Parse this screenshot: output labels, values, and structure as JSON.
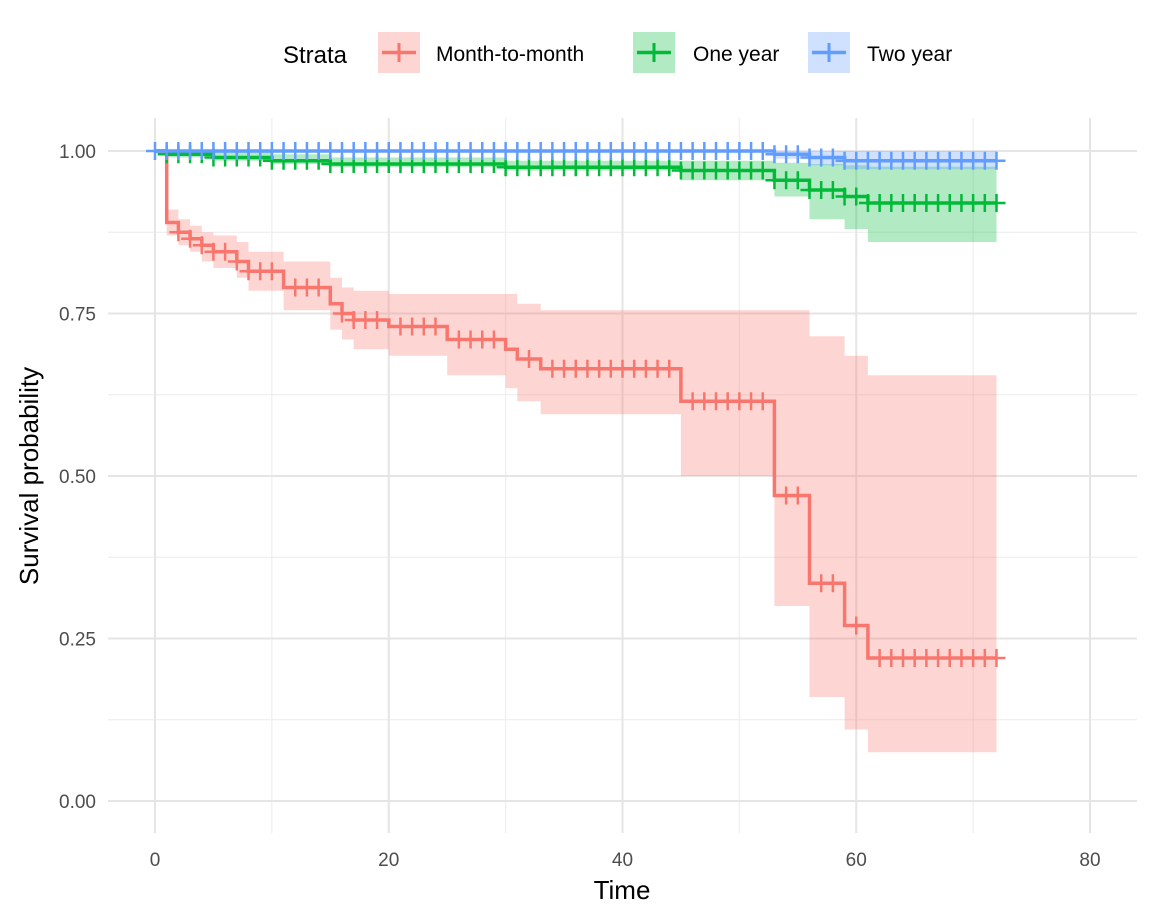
{
  "chart_data": {
    "type": "line",
    "subtype": "kaplan-meier step",
    "xlabel": "Time",
    "ylabel": "Survival probability",
    "xlim": [
      -2,
      84
    ],
    "ylim": [
      -0.04,
      1.05
    ],
    "x_ticks": [
      0,
      20,
      40,
      60,
      80
    ],
    "x_tick_labels": [
      "0",
      "20",
      "40",
      "60",
      "80"
    ],
    "y_ticks": [
      0.0,
      0.25,
      0.5,
      0.75,
      1.0
    ],
    "y_tick_labels": [
      "0.00",
      "0.25",
      "0.50",
      "0.75",
      "1.00"
    ],
    "grid": true,
    "legend": {
      "title": "Strata",
      "position": "top"
    },
    "series": [
      {
        "name": "Month-to-month",
        "color": "#f8766d",
        "steps": [
          [
            0,
            1.0
          ],
          [
            1,
            0.89
          ],
          [
            2,
            0.875
          ],
          [
            3,
            0.865
          ],
          [
            4,
            0.855
          ],
          [
            5,
            0.845
          ],
          [
            7,
            0.83
          ],
          [
            8,
            0.815
          ],
          [
            11,
            0.79
          ],
          [
            15,
            0.765
          ],
          [
            16,
            0.75
          ],
          [
            17,
            0.74
          ],
          [
            20,
            0.73
          ],
          [
            25,
            0.71
          ],
          [
            30,
            0.695
          ],
          [
            31,
            0.68
          ],
          [
            33,
            0.665
          ],
          [
            45,
            0.615
          ],
          [
            53,
            0.47
          ],
          [
            56,
            0.335
          ],
          [
            59,
            0.27
          ],
          [
            61,
            0.22
          ],
          [
            72,
            0.22
          ]
        ],
        "ci_lower": [
          [
            0,
            1.0
          ],
          [
            1,
            0.87
          ],
          [
            2,
            0.855
          ],
          [
            3,
            0.845
          ],
          [
            4,
            0.83
          ],
          [
            5,
            0.82
          ],
          [
            7,
            0.805
          ],
          [
            8,
            0.785
          ],
          [
            11,
            0.755
          ],
          [
            15,
            0.725
          ],
          [
            16,
            0.71
          ],
          [
            17,
            0.695
          ],
          [
            20,
            0.685
          ],
          [
            25,
            0.655
          ],
          [
            30,
            0.635
          ],
          [
            31,
            0.615
          ],
          [
            33,
            0.595
          ],
          [
            45,
            0.5
          ],
          [
            53,
            0.3
          ],
          [
            56,
            0.16
          ],
          [
            59,
            0.11
          ],
          [
            61,
            0.075
          ],
          [
            72,
            0.075
          ]
        ],
        "ci_upper": [
          [
            0,
            1.0
          ],
          [
            1,
            0.91
          ],
          [
            2,
            0.895
          ],
          [
            3,
            0.885
          ],
          [
            4,
            0.875
          ],
          [
            5,
            0.87
          ],
          [
            7,
            0.86
          ],
          [
            8,
            0.845
          ],
          [
            11,
            0.83
          ],
          [
            15,
            0.805
          ],
          [
            16,
            0.79
          ],
          [
            17,
            0.785
          ],
          [
            20,
            0.78
          ],
          [
            25,
            0.78
          ],
          [
            30,
            0.78
          ],
          [
            31,
            0.765
          ],
          [
            33,
            0.755
          ],
          [
            45,
            0.755
          ],
          [
            53,
            0.755
          ],
          [
            56,
            0.715
          ],
          [
            59,
            0.685
          ],
          [
            61,
            0.655
          ],
          [
            72,
            0.655
          ]
        ],
        "censor_times": [
          2,
          3,
          4,
          5,
          6,
          7,
          8,
          9,
          10,
          12,
          13,
          14,
          16,
          17,
          18,
          19,
          21,
          22,
          23,
          24,
          26,
          27,
          28,
          29,
          32,
          34,
          35,
          36,
          37,
          38,
          39,
          40,
          41,
          42,
          43,
          44,
          46,
          47,
          48,
          49,
          50,
          51,
          52,
          54,
          55,
          57,
          58,
          60,
          62,
          63,
          64,
          65,
          66,
          67,
          68,
          69,
          70,
          71,
          72
        ]
      },
      {
        "name": "One year",
        "color": "#00ba38",
        "steps": [
          [
            0,
            1.0
          ],
          [
            1,
            0.995
          ],
          [
            5,
            0.99
          ],
          [
            10,
            0.985
          ],
          [
            15,
            0.98
          ],
          [
            30,
            0.975
          ],
          [
            45,
            0.97
          ],
          [
            53,
            0.955
          ],
          [
            56,
            0.94
          ],
          [
            59,
            0.93
          ],
          [
            61,
            0.92
          ],
          [
            72,
            0.92
          ]
        ],
        "ci_lower": [
          [
            0,
            1.0
          ],
          [
            1,
            0.99
          ],
          [
            5,
            0.985
          ],
          [
            10,
            0.98
          ],
          [
            15,
            0.975
          ],
          [
            30,
            0.97
          ],
          [
            45,
            0.955
          ],
          [
            53,
            0.93
          ],
          [
            56,
            0.895
          ],
          [
            59,
            0.88
          ],
          [
            61,
            0.86
          ],
          [
            72,
            0.86
          ]
        ],
        "ci_upper": [
          [
            0,
            1.0
          ],
          [
            1,
            1.0
          ],
          [
            5,
            0.998
          ],
          [
            10,
            0.995
          ],
          [
            15,
            0.99
          ],
          [
            30,
            0.985
          ],
          [
            45,
            0.985
          ],
          [
            53,
            0.982
          ],
          [
            56,
            0.98
          ],
          [
            59,
            0.978
          ],
          [
            61,
            0.976
          ],
          [
            72,
            0.976
          ]
        ],
        "censor_times": [
          1,
          2,
          3,
          4,
          5,
          6,
          7,
          8,
          9,
          10,
          11,
          12,
          13,
          14,
          15,
          16,
          17,
          18,
          19,
          20,
          21,
          22,
          23,
          24,
          25,
          26,
          27,
          28,
          29,
          30,
          31,
          32,
          33,
          34,
          35,
          36,
          37,
          38,
          39,
          40,
          41,
          42,
          43,
          44,
          45,
          46,
          47,
          48,
          49,
          50,
          51,
          52,
          53,
          54,
          55,
          56,
          57,
          58,
          59,
          60,
          61,
          62,
          63,
          64,
          65,
          66,
          67,
          68,
          69,
          70,
          71,
          72
        ]
      },
      {
        "name": "Two year",
        "color": "#619cff",
        "steps": [
          [
            0,
            1.0
          ],
          [
            53,
            0.995
          ],
          [
            56,
            0.99
          ],
          [
            59,
            0.985
          ],
          [
            72,
            0.985
          ]
        ],
        "ci_lower": [
          [
            0,
            1.0
          ],
          [
            53,
            0.988
          ],
          [
            56,
            0.978
          ],
          [
            59,
            0.972
          ],
          [
            72,
            0.972
          ]
        ],
        "ci_upper": [
          [
            0,
            1.0
          ],
          [
            53,
            1.0
          ],
          [
            56,
            1.0
          ],
          [
            59,
            1.0
          ],
          [
            72,
            1.0
          ]
        ],
        "censor_times": [
          0,
          1,
          2,
          3,
          4,
          5,
          6,
          7,
          8,
          9,
          10,
          11,
          12,
          13,
          14,
          15,
          16,
          17,
          18,
          19,
          20,
          21,
          22,
          23,
          24,
          25,
          26,
          27,
          28,
          29,
          30,
          31,
          32,
          33,
          34,
          35,
          36,
          37,
          38,
          39,
          40,
          41,
          42,
          43,
          44,
          45,
          46,
          47,
          48,
          49,
          50,
          51,
          52,
          53,
          54,
          55,
          56,
          57,
          58,
          59,
          60,
          61,
          62,
          63,
          64,
          65,
          66,
          67,
          68,
          69,
          70,
          71,
          72
        ]
      }
    ]
  }
}
